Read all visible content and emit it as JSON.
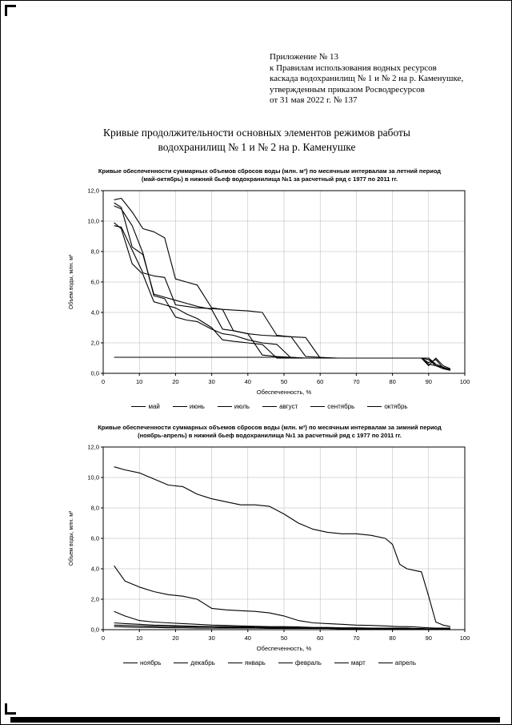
{
  "doc": {
    "header_lines": [
      "Приложение № 13",
      "к Правилам использования водных ресурсов",
      "каскада водохранилищ № 1 и № 2 на р. Каменушке,",
      "утвержденным приказом Росводресурсов",
      "от 31 мая 2022 г. № 137"
    ],
    "title_lines": [
      "Кривые продолжительности основных элементов режимов работы",
      "водохранилищ № 1 и № 2 на р. Каменушке"
    ],
    "line_color": "#000000",
    "grid_color": "#b5b5b5"
  },
  "chart_data": [
    {
      "type": "line",
      "title_lines": [
        "Кривые обеспеченности суммарных объемов сбросов воды (млн. м³) по месячным интервалам за летний период",
        "(май-октябрь)  в нижний  бьеф  водохранилища №1  за расчетный ряд с 1977 по 2011 гг."
      ],
      "xlabel": "Обеспеченность, %",
      "ylabel": "Объем воды, млн. м³",
      "xlim": [
        0,
        100
      ],
      "ylim": [
        0,
        12
      ],
      "xticks": [
        0,
        10,
        20,
        30,
        40,
        50,
        60,
        70,
        80,
        90,
        100
      ],
      "yticks": [
        0,
        2,
        4,
        6,
        8,
        10,
        12
      ],
      "grid": true,
      "legend_position": "bottom",
      "series": [
        {
          "name": "май",
          "x": [
            3,
            5,
            8,
            11,
            14,
            17,
            20,
            23,
            26,
            30,
            33,
            36,
            40,
            44,
            48,
            52,
            56,
            60,
            65,
            70,
            75,
            80,
            85,
            88,
            90,
            92,
            94,
            96
          ],
          "y": [
            11.4,
            11.5,
            10.6,
            9.5,
            9.3,
            8.9,
            6.2,
            6.0,
            5.8,
            4.3,
            4.2,
            4.15,
            4.1,
            4.0,
            2.5,
            2.4,
            2.35,
            1.0,
            1.0,
            1.0,
            1.0,
            1.0,
            1.0,
            1.0,
            0.5,
            1.0,
            0.5,
            0.3
          ]
        },
        {
          "name": "июнь",
          "x": [
            3,
            5,
            8,
            11,
            14,
            17,
            20,
            23,
            26,
            30,
            33,
            36,
            40,
            44,
            48,
            52,
            56,
            60,
            65,
            70,
            75,
            80,
            85,
            88,
            90,
            92,
            94,
            96
          ],
          "y": [
            11.2,
            10.9,
            8.3,
            7.8,
            5.2,
            5.0,
            4.8,
            4.6,
            4.4,
            4.2,
            2.9,
            2.8,
            2.6,
            2.5,
            2.45,
            2.4,
            1.1,
            1.05,
            1.0,
            1.0,
            1.0,
            1.0,
            1.0,
            1.0,
            0.9,
            0.5,
            0.4,
            0.25
          ]
        },
        {
          "name": "июль",
          "x": [
            3,
            5,
            8,
            11,
            14,
            17,
            20,
            23,
            26,
            30,
            33,
            36,
            40,
            44,
            48,
            52,
            56,
            60,
            65,
            70,
            75,
            80,
            85,
            88,
            90,
            92,
            94,
            96
          ],
          "y": [
            9.7,
            9.6,
            8.1,
            6.6,
            6.4,
            6.3,
            4.5,
            4.4,
            4.3,
            4.25,
            4.2,
            2.8,
            2.6,
            1.2,
            1.1,
            1.05,
            1.0,
            1.0,
            1.0,
            1.0,
            1.0,
            1.0,
            1.0,
            1.0,
            1.0,
            0.6,
            0.4,
            0.2
          ]
        },
        {
          "name": "август",
          "x": [
            3,
            5,
            8,
            11,
            14,
            17,
            20,
            23,
            26,
            30,
            33,
            36,
            40,
            44,
            48,
            52,
            56,
            60,
            65,
            70,
            75,
            80,
            85,
            88,
            90,
            92,
            94,
            96
          ],
          "y": [
            11.0,
            10.8,
            9.7,
            7.9,
            5.1,
            4.9,
            3.7,
            3.5,
            3.4,
            2.9,
            2.6,
            2.5,
            2.2,
            2.0,
            1.9,
            1.0,
            1.0,
            1.0,
            1.0,
            1.0,
            1.0,
            1.0,
            1.0,
            1.0,
            0.7,
            0.9,
            0.35,
            0.2
          ]
        },
        {
          "name": "сентябрь",
          "x": [
            3,
            5,
            8,
            11,
            14,
            17,
            20,
            23,
            26,
            30,
            33,
            36,
            40,
            44,
            48,
            52,
            56,
            60,
            65,
            70,
            75,
            80,
            85,
            88,
            90,
            92,
            94,
            96
          ],
          "y": [
            9.9,
            9.5,
            7.2,
            6.5,
            4.7,
            4.5,
            4.3,
            3.9,
            3.6,
            3.0,
            2.2,
            2.1,
            2.0,
            1.9,
            1.0,
            1.0,
            1.0,
            1.0,
            1.0,
            1.0,
            1.0,
            1.0,
            1.0,
            1.0,
            0.6,
            0.5,
            0.3,
            0.2
          ]
        },
        {
          "name": "октябрь",
          "x": [
            3,
            5,
            8,
            11,
            14,
            17,
            20,
            23,
            26,
            30,
            33,
            36,
            40,
            44,
            48,
            52,
            56,
            60,
            65,
            70,
            75,
            80,
            85,
            88,
            90,
            92,
            94,
            96
          ],
          "y": [
            1.05,
            1.05,
            1.05,
            1.05,
            1.05,
            1.05,
            1.05,
            1.05,
            1.05,
            1.05,
            1.05,
            1.05,
            1.05,
            1.05,
            1.05,
            1.05,
            1.0,
            1.0,
            1.0,
            1.0,
            1.0,
            1.0,
            1.0,
            1.0,
            1.0,
            0.5,
            0.4,
            0.2
          ]
        }
      ]
    },
    {
      "type": "line",
      "title_lines": [
        "Кривые обеспеченности суммарных объемов сбросов воды (млн. м³) по месячным интервалам за зимний период",
        "(ноябрь-апрель)  в нижний  бьеф  водохранилища №1  за расчетный ряд с 1977 по 2011 гг."
      ],
      "xlabel": "Обеспеченность, %",
      "ylabel": "Объем воды, млн. м³",
      "xlim": [
        0,
        100
      ],
      "ylim": [
        0,
        12
      ],
      "xticks": [
        0,
        10,
        20,
        30,
        40,
        50,
        60,
        70,
        80,
        90,
        100
      ],
      "yticks": [
        0,
        2,
        4,
        6,
        8,
        10,
        12
      ],
      "grid": true,
      "legend_position": "bottom",
      "series": [
        {
          "name": "ноябрь",
          "x": [
            3,
            6,
            10,
            14,
            18,
            22,
            26,
            30,
            34,
            38,
            42,
            46,
            50,
            54,
            58,
            62,
            66,
            70,
            74,
            78,
            80,
            82,
            84,
            86,
            88,
            90,
            92,
            94,
            96
          ],
          "y": [
            10.7,
            10.5,
            10.3,
            9.9,
            9.5,
            9.4,
            8.9,
            8.6,
            8.4,
            8.2,
            8.2,
            8.1,
            7.6,
            7.0,
            6.6,
            6.4,
            6.3,
            6.3,
            6.2,
            6.0,
            5.6,
            4.3,
            4.0,
            3.9,
            3.8,
            2.2,
            0.5,
            0.3,
            0.2
          ]
        },
        {
          "name": "декабрь",
          "x": [
            3,
            6,
            10,
            14,
            18,
            22,
            26,
            30,
            34,
            38,
            42,
            46,
            50,
            54,
            58,
            62,
            66,
            70,
            74,
            78,
            80,
            82,
            84,
            86,
            88,
            90,
            92,
            94,
            96
          ],
          "y": [
            4.2,
            3.2,
            2.8,
            2.5,
            2.3,
            2.2,
            2.0,
            1.4,
            1.3,
            1.25,
            1.2,
            1.1,
            0.9,
            0.6,
            0.45,
            0.4,
            0.35,
            0.3,
            0.28,
            0.25,
            0.22,
            0.2,
            0.2,
            0.18,
            0.15,
            0.12,
            0.1,
            0.1,
            0.1
          ]
        },
        {
          "name": "январь",
          "x": [
            3,
            6,
            10,
            14,
            18,
            22,
            26,
            30,
            34,
            38,
            42,
            46,
            50,
            54,
            58,
            62,
            66,
            70,
            74,
            78,
            80,
            82,
            84,
            86,
            88,
            90,
            92,
            94,
            96
          ],
          "y": [
            1.2,
            0.9,
            0.6,
            0.5,
            0.45,
            0.4,
            0.35,
            0.3,
            0.28,
            0.25,
            0.22,
            0.2,
            0.2,
            0.18,
            0.15,
            0.15,
            0.12,
            0.12,
            0.1,
            0.1,
            0.1,
            0.1,
            0.1,
            0.08,
            0.08,
            0.05,
            0.05,
            0.05,
            0.05
          ]
        },
        {
          "name": "февраль",
          "x": [
            3,
            6,
            10,
            14,
            18,
            22,
            26,
            30,
            34,
            38,
            42,
            46,
            50,
            54,
            58,
            62,
            66,
            70,
            74,
            78,
            80,
            82,
            84,
            86,
            88,
            90,
            92,
            94,
            96
          ],
          "y": [
            0.45,
            0.4,
            0.35,
            0.3,
            0.28,
            0.25,
            0.22,
            0.2,
            0.2,
            0.18,
            0.18,
            0.15,
            0.15,
            0.12,
            0.12,
            0.1,
            0.1,
            0.1,
            0.1,
            0.08,
            0.08,
            0.08,
            0.08,
            0.05,
            0.05,
            0.05,
            0.05,
            0.05,
            0.05
          ]
        },
        {
          "name": "март",
          "x": [
            3,
            6,
            10,
            14,
            18,
            22,
            26,
            30,
            34,
            38,
            42,
            46,
            50,
            54,
            58,
            62,
            66,
            70,
            74,
            78,
            80,
            82,
            84,
            86,
            88,
            90,
            92,
            94,
            96
          ],
          "y": [
            0.3,
            0.28,
            0.25,
            0.22,
            0.2,
            0.2,
            0.18,
            0.18,
            0.15,
            0.15,
            0.12,
            0.12,
            0.1,
            0.1,
            0.1,
            0.1,
            0.08,
            0.08,
            0.08,
            0.08,
            0.05,
            0.05,
            0.05,
            0.05,
            0.05,
            0.05,
            0.05,
            0.05,
            0.05
          ]
        },
        {
          "name": "апрель",
          "x": [
            3,
            6,
            10,
            14,
            18,
            22,
            26,
            30,
            34,
            38,
            42,
            46,
            50,
            54,
            58,
            62,
            66,
            70,
            74,
            78,
            80,
            82,
            84,
            86,
            88,
            90,
            92,
            94,
            96
          ],
          "y": [
            0.2,
            0.18,
            0.15,
            0.15,
            0.12,
            0.12,
            0.1,
            0.1,
            0.1,
            0.1,
            0.1,
            0.08,
            0.08,
            0.08,
            0.08,
            0.08,
            0.05,
            0.05,
            0.05,
            0.05,
            0.05,
            0.05,
            0.05,
            0.05,
            0.05,
            0.05,
            0.05,
            0.05,
            0.05
          ]
        }
      ]
    }
  ]
}
